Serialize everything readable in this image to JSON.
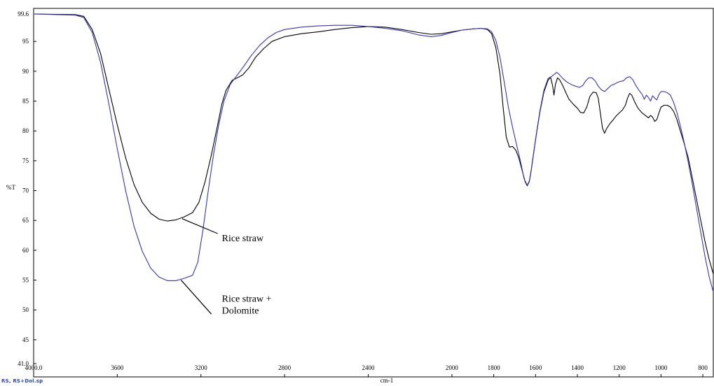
{
  "file_label": "RS, RS+Dol.sp",
  "chart_data": {
    "type": "line",
    "xlabel": "cm-1",
    "ylabel": "%T",
    "xlim": [
      4000.0,
      750
    ],
    "ylim": [
      41.0,
      99.6
    ],
    "x_reversed": true,
    "grid": false,
    "legend": "none",
    "x_ticks": [
      {
        "value": 4000,
        "label": "4000.0"
      },
      {
        "value": 3600,
        "label": "3600"
      },
      {
        "value": 3200,
        "label": "3200"
      },
      {
        "value": 2800,
        "label": "2800"
      },
      {
        "value": 2400,
        "label": "2400"
      },
      {
        "value": 2000,
        "label": "2000"
      },
      {
        "value": 1800,
        "label": "1800"
      },
      {
        "value": 1600,
        "label": "1600"
      },
      {
        "value": 1400,
        "label": "1400"
      },
      {
        "value": 1200,
        "label": "1200"
      },
      {
        "value": 1000,
        "label": "1000"
      },
      {
        "value": 800,
        "label": "800"
      }
    ],
    "y_ticks": [
      {
        "value": 99.6,
        "label": "99.6"
      },
      {
        "value": 95,
        "label": "95"
      },
      {
        "value": 90,
        "label": "90"
      },
      {
        "value": 85,
        "label": "85"
      },
      {
        "value": 80,
        "label": "80"
      },
      {
        "value": 75,
        "label": "75"
      },
      {
        "value": 70,
        "label": "70"
      },
      {
        "value": 65,
        "label": "65"
      },
      {
        "value": 60,
        "label": "60"
      },
      {
        "value": 55,
        "label": "55"
      },
      {
        "value": 50,
        "label": "50"
      },
      {
        "value": 45,
        "label": "45"
      },
      {
        "value": 41.0,
        "label": "41.0"
      }
    ],
    "series": [
      {
        "name": "Rice straw",
        "color": "#000000",
        "points": [
          [
            4000,
            99.6
          ],
          [
            3800,
            99.5
          ],
          [
            3760,
            99.2
          ],
          [
            3720,
            97.0
          ],
          [
            3680,
            93.0
          ],
          [
            3640,
            87.0
          ],
          [
            3600,
            81.0
          ],
          [
            3560,
            75.5
          ],
          [
            3520,
            71.0
          ],
          [
            3480,
            68.0
          ],
          [
            3440,
            66.2
          ],
          [
            3400,
            65.2
          ],
          [
            3360,
            64.9
          ],
          [
            3320,
            65.1
          ],
          [
            3280,
            65.6
          ],
          [
            3240,
            66.3
          ],
          [
            3210,
            68.0
          ],
          [
            3180,
            71.5
          ],
          [
            3150,
            76.0
          ],
          [
            3120,
            81.0
          ],
          [
            3100,
            84.5
          ],
          [
            3080,
            86.8
          ],
          [
            3050,
            88.5
          ],
          [
            3020,
            89.0
          ],
          [
            3000,
            89.4
          ],
          [
            2970,
            90.6
          ],
          [
            2940,
            92.3
          ],
          [
            2900,
            93.8
          ],
          [
            2860,
            95.0
          ],
          [
            2800,
            95.8
          ],
          [
            2720,
            96.3
          ],
          [
            2640,
            96.6
          ],
          [
            2560,
            97.0
          ],
          [
            2480,
            97.3
          ],
          [
            2400,
            97.5
          ],
          [
            2320,
            97.4
          ],
          [
            2240,
            97.0
          ],
          [
            2160,
            96.5
          ],
          [
            2100,
            96.2
          ],
          [
            2050,
            96.3
          ],
          [
            2000,
            96.6
          ],
          [
            1950,
            96.9
          ],
          [
            1900,
            97.1
          ],
          [
            1860,
            97.2
          ],
          [
            1830,
            97.0
          ],
          [
            1810,
            96.3
          ],
          [
            1790,
            94.0
          ],
          [
            1770,
            89.5
          ],
          [
            1755,
            84.0
          ],
          [
            1740,
            79.0
          ],
          [
            1725,
            77.3
          ],
          [
            1710,
            77.4
          ],
          [
            1695,
            76.8
          ],
          [
            1680,
            75.5
          ],
          [
            1665,
            73.5
          ],
          [
            1650,
            71.5
          ],
          [
            1640,
            70.8
          ],
          [
            1630,
            71.5
          ],
          [
            1620,
            73.5
          ],
          [
            1600,
            78.5
          ],
          [
            1580,
            83.0
          ],
          [
            1560,
            86.5
          ],
          [
            1540,
            88.5
          ],
          [
            1528,
            89.0
          ],
          [
            1518,
            87.5
          ],
          [
            1512,
            86.0
          ],
          [
            1505,
            87.8
          ],
          [
            1495,
            88.9
          ],
          [
            1485,
            88.6
          ],
          [
            1470,
            87.6
          ],
          [
            1455,
            86.4
          ],
          [
            1440,
            85.3
          ],
          [
            1420,
            84.5
          ],
          [
            1400,
            83.8
          ],
          [
            1385,
            83.1
          ],
          [
            1370,
            83.0
          ],
          [
            1355,
            84.0
          ],
          [
            1340,
            85.8
          ],
          [
            1325,
            86.5
          ],
          [
            1310,
            86.4
          ],
          [
            1300,
            85.5
          ],
          [
            1290,
            83.0
          ],
          [
            1280,
            80.5
          ],
          [
            1270,
            79.6
          ],
          [
            1260,
            80.4
          ],
          [
            1245,
            81.2
          ],
          [
            1230,
            81.8
          ],
          [
            1215,
            82.5
          ],
          [
            1200,
            83.0
          ],
          [
            1185,
            83.5
          ],
          [
            1170,
            84.3
          ],
          [
            1160,
            85.5
          ],
          [
            1150,
            86.3
          ],
          [
            1140,
            86.0
          ],
          [
            1125,
            84.8
          ],
          [
            1110,
            83.8
          ],
          [
            1090,
            83.0
          ],
          [
            1075,
            82.6
          ],
          [
            1060,
            82.2
          ],
          [
            1050,
            82.6
          ],
          [
            1040,
            82.3
          ],
          [
            1030,
            81.6
          ],
          [
            1020,
            81.9
          ],
          [
            1010,
            83.0
          ],
          [
            1000,
            84.0
          ],
          [
            985,
            84.3
          ],
          [
            970,
            84.3
          ],
          [
            955,
            84.0
          ],
          [
            940,
            83.3
          ],
          [
            925,
            82.0
          ],
          [
            910,
            80.3
          ],
          [
            890,
            78.0
          ],
          [
            870,
            75.5
          ],
          [
            850,
            72.0
          ],
          [
            830,
            68.5
          ],
          [
            810,
            65.0
          ],
          [
            790,
            61.5
          ],
          [
            770,
            58.5
          ],
          [
            750,
            56.0
          ]
        ]
      },
      {
        "name": "Rice straw + Dolomite",
        "color": "#3333cc",
        "points": [
          [
            4000,
            99.6
          ],
          [
            3800,
            99.4
          ],
          [
            3760,
            99.0
          ],
          [
            3720,
            96.5
          ],
          [
            3680,
            91.5
          ],
          [
            3640,
            84.5
          ],
          [
            3600,
            77.0
          ],
          [
            3560,
            70.0
          ],
          [
            3520,
            64.0
          ],
          [
            3480,
            59.8
          ],
          [
            3440,
            57.0
          ],
          [
            3400,
            55.5
          ],
          [
            3360,
            54.9
          ],
          [
            3320,
            54.9
          ],
          [
            3280,
            55.3
          ],
          [
            3240,
            55.8
          ],
          [
            3215,
            58.0
          ],
          [
            3190,
            63.5
          ],
          [
            3165,
            70.0
          ],
          [
            3140,
            76.0
          ],
          [
            3115,
            81.0
          ],
          [
            3090,
            85.0
          ],
          [
            3060,
            87.8
          ],
          [
            3030,
            89.2
          ],
          [
            3000,
            90.6
          ],
          [
            2960,
            92.6
          ],
          [
            2920,
            94.3
          ],
          [
            2880,
            95.6
          ],
          [
            2840,
            96.5
          ],
          [
            2800,
            97.0
          ],
          [
            2720,
            97.4
          ],
          [
            2640,
            97.6
          ],
          [
            2560,
            97.7
          ],
          [
            2480,
            97.7
          ],
          [
            2400,
            97.5
          ],
          [
            2320,
            97.2
          ],
          [
            2240,
            96.8
          ],
          [
            2160,
            96.1
          ],
          [
            2100,
            95.8
          ],
          [
            2050,
            96.0
          ],
          [
            2000,
            96.5
          ],
          [
            1950,
            96.9
          ],
          [
            1900,
            97.1
          ],
          [
            1860,
            97.2
          ],
          [
            1830,
            97.1
          ],
          [
            1810,
            96.6
          ],
          [
            1790,
            95.2
          ],
          [
            1770,
            92.3
          ],
          [
            1750,
            88.3
          ],
          [
            1730,
            84.0
          ],
          [
            1710,
            80.6
          ],
          [
            1690,
            77.6
          ],
          [
            1670,
            74.6
          ],
          [
            1655,
            72.0
          ],
          [
            1640,
            70.9
          ],
          [
            1630,
            71.6
          ],
          [
            1620,
            73.6
          ],
          [
            1600,
            78.6
          ],
          [
            1580,
            83.2
          ],
          [
            1560,
            86.8
          ],
          [
            1540,
            88.8
          ],
          [
            1520,
            89.2
          ],
          [
            1510,
            89.5
          ],
          [
            1500,
            89.8
          ],
          [
            1490,
            89.6
          ],
          [
            1470,
            88.8
          ],
          [
            1450,
            88.2
          ],
          [
            1430,
            87.8
          ],
          [
            1410,
            87.5
          ],
          [
            1390,
            87.3
          ],
          [
            1375,
            87.6
          ],
          [
            1360,
            88.4
          ],
          [
            1345,
            88.9
          ],
          [
            1330,
            88.9
          ],
          [
            1315,
            88.4
          ],
          [
            1300,
            87.5
          ],
          [
            1285,
            86.9
          ],
          [
            1270,
            86.6
          ],
          [
            1255,
            87.1
          ],
          [
            1240,
            87.6
          ],
          [
            1225,
            87.8
          ],
          [
            1210,
            88.1
          ],
          [
            1195,
            88.3
          ],
          [
            1180,
            88.4
          ],
          [
            1165,
            88.9
          ],
          [
            1150,
            89.1
          ],
          [
            1135,
            88.6
          ],
          [
            1120,
            87.6
          ],
          [
            1105,
            86.8
          ],
          [
            1090,
            86.1
          ],
          [
            1080,
            85.3
          ],
          [
            1070,
            86.0
          ],
          [
            1060,
            85.6
          ],
          [
            1050,
            85.0
          ],
          [
            1040,
            85.9
          ],
          [
            1030,
            85.5
          ],
          [
            1020,
            85.2
          ],
          [
            1010,
            86.1
          ],
          [
            1000,
            86.6
          ],
          [
            985,
            86.6
          ],
          [
            970,
            86.4
          ],
          [
            955,
            86.0
          ],
          [
            940,
            84.8
          ],
          [
            925,
            83.2
          ],
          [
            910,
            81.2
          ],
          [
            890,
            78.2
          ],
          [
            870,
            74.8
          ],
          [
            850,
            71.0
          ],
          [
            830,
            67.0
          ],
          [
            810,
            63.0
          ],
          [
            790,
            59.0
          ],
          [
            770,
            55.6
          ],
          [
            750,
            53.0
          ]
        ]
      }
    ],
    "annotations": [
      {
        "lines": [
          "Rice straw"
        ],
        "series": 0,
        "text_at": [
          3100,
          61.5
        ],
        "arrow_to": [
          3290,
          65.3
        ],
        "arrow_from": [
          3120,
          62.8
        ]
      },
      {
        "lines": [
          "Rice straw +",
          "Dolomite"
        ],
        "series": 1,
        "text_at": [
          3100,
          51.4
        ],
        "arrow_to": [
          3295,
          55.0
        ],
        "arrow_from": [
          3150,
          49.3
        ]
      }
    ]
  }
}
